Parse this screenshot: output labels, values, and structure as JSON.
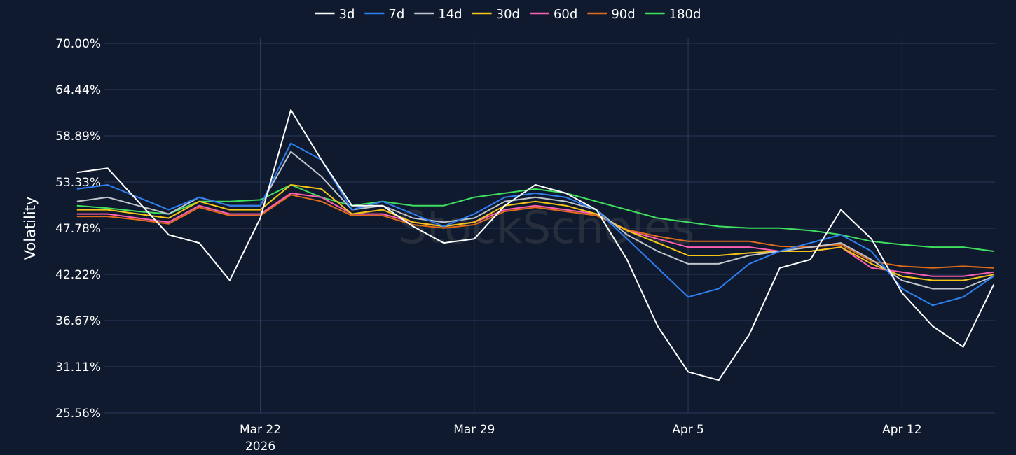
{
  "watermark": "StockScholes",
  "chart_data": {
    "type": "line",
    "ylabel": "Volatility",
    "ylim": [
      25.56,
      70.0
    ],
    "yticks": [
      "25.56%",
      "31.11%",
      "36.67%",
      "42.22%",
      "47.78%",
      "53.33%",
      "58.89%",
      "64.44%",
      "70.00%"
    ],
    "ytick_values": [
      25.56,
      31.11,
      36.67,
      42.22,
      47.78,
      53.33,
      58.89,
      64.44,
      70.0
    ],
    "xlim": [
      "2026-03-16 21:00",
      "2026-04-15 01:00"
    ],
    "xticks": [
      {
        "label": "Mar 22",
        "sublabel": "2026",
        "x": "2026-03-22"
      },
      {
        "label": "Mar 29",
        "sublabel": "",
        "x": "2026-03-29"
      },
      {
        "label": "Apr 5",
        "sublabel": "",
        "x": "2026-04-05"
      },
      {
        "label": "Apr 12",
        "sublabel": "",
        "x": "2026-04-12"
      }
    ],
    "grid": true,
    "legend_position": "top-center",
    "x": [
      "2026-03-16",
      "2026-03-17",
      "2026-03-18",
      "2026-03-19",
      "2026-03-20",
      "2026-03-21",
      "2026-03-22",
      "2026-03-23",
      "2026-03-24",
      "2026-03-25",
      "2026-03-26",
      "2026-03-27",
      "2026-03-28",
      "2026-03-29",
      "2026-03-30",
      "2026-03-31",
      "2026-04-01",
      "2026-04-02",
      "2026-04-03",
      "2026-04-04",
      "2026-04-05",
      "2026-04-06",
      "2026-04-07",
      "2026-04-08",
      "2026-04-09",
      "2026-04-10",
      "2026-04-11",
      "2026-04-12",
      "2026-04-13",
      "2026-04-14",
      "2026-04-15"
    ],
    "series": [
      {
        "name": "3d",
        "color": "#ffffff",
        "values": [
          54.5,
          55.0,
          51.0,
          47.0,
          46.0,
          41.5,
          49.0,
          62.0,
          56.0,
          50.5,
          50.5,
          48.0,
          46.0,
          46.5,
          50.5,
          53.0,
          52.0,
          50.0,
          44.0,
          36.0,
          30.5,
          29.5,
          35.0,
          43.0,
          44.0,
          50.0,
          46.5,
          40.0,
          36.0,
          33.5,
          41.0
        ]
      },
      {
        "name": "7d",
        "color": "#2f7ff0",
        "values": [
          52.5,
          53.0,
          51.5,
          50.0,
          51.5,
          50.5,
          50.5,
          58.0,
          56.0,
          50.0,
          51.0,
          49.5,
          48.0,
          49.5,
          51.5,
          52.0,
          51.5,
          50.0,
          46.5,
          43.0,
          39.5,
          40.5,
          43.5,
          45.0,
          46.0,
          47.0,
          45.0,
          40.5,
          38.5,
          39.5,
          42.0
        ]
      },
      {
        "name": "14d",
        "color": "#c0c4cc",
        "values": [
          51.0,
          51.5,
          50.5,
          49.5,
          51.5,
          50.5,
          50.5,
          57.0,
          54.0,
          50.0,
          50.5,
          49.0,
          48.5,
          49.0,
          51.0,
          51.5,
          51.0,
          50.0,
          47.0,
          45.0,
          43.5,
          43.5,
          44.5,
          45.0,
          45.5,
          46.0,
          44.0,
          41.5,
          40.5,
          40.5,
          42.0
        ]
      },
      {
        "name": "30d",
        "color": "#f5c518",
        "values": [
          50.0,
          50.0,
          49.5,
          49.0,
          51.0,
          50.0,
          50.0,
          53.0,
          52.5,
          49.5,
          50.0,
          48.5,
          48.0,
          48.5,
          50.5,
          51.0,
          50.5,
          49.5,
          47.5,
          46.0,
          44.5,
          44.5,
          44.8,
          45.0,
          45.0,
          45.5,
          43.5,
          42.0,
          41.5,
          41.5,
          42.2
        ]
      },
      {
        "name": "60d",
        "color": "#ff5fb0",
        "values": [
          49.5,
          49.5,
          49.0,
          48.5,
          50.5,
          49.5,
          49.5,
          52.0,
          51.5,
          49.5,
          49.5,
          48.5,
          48.0,
          48.5,
          50.0,
          50.5,
          50.0,
          49.5,
          47.5,
          46.5,
          45.5,
          45.5,
          45.5,
          45.0,
          45.0,
          45.5,
          43.0,
          42.5,
          42.0,
          42.0,
          42.5
        ]
      },
      {
        "name": "90d",
        "color": "#e06c1a",
        "values": [
          49.2,
          49.2,
          48.8,
          48.3,
          50.3,
          49.3,
          49.3,
          51.8,
          51.0,
          49.3,
          49.3,
          48.2,
          47.8,
          48.2,
          49.8,
          50.3,
          49.8,
          49.3,
          47.6,
          46.8,
          46.2,
          46.2,
          46.2,
          45.6,
          45.5,
          45.8,
          43.8,
          43.2,
          43.0,
          43.2,
          43.0
        ]
      },
      {
        "name": "180d",
        "color": "#3fe05f",
        "values": [
          50.5,
          50.2,
          49.8,
          49.5,
          51.0,
          51.0,
          51.2,
          53.0,
          51.5,
          50.5,
          51.0,
          50.5,
          50.5,
          51.5,
          52.0,
          52.5,
          52.0,
          51.0,
          50.0,
          49.0,
          48.5,
          48.0,
          47.8,
          47.8,
          47.5,
          47.0,
          46.2,
          45.8,
          45.5,
          45.5,
          45.0
        ]
      }
    ]
  }
}
